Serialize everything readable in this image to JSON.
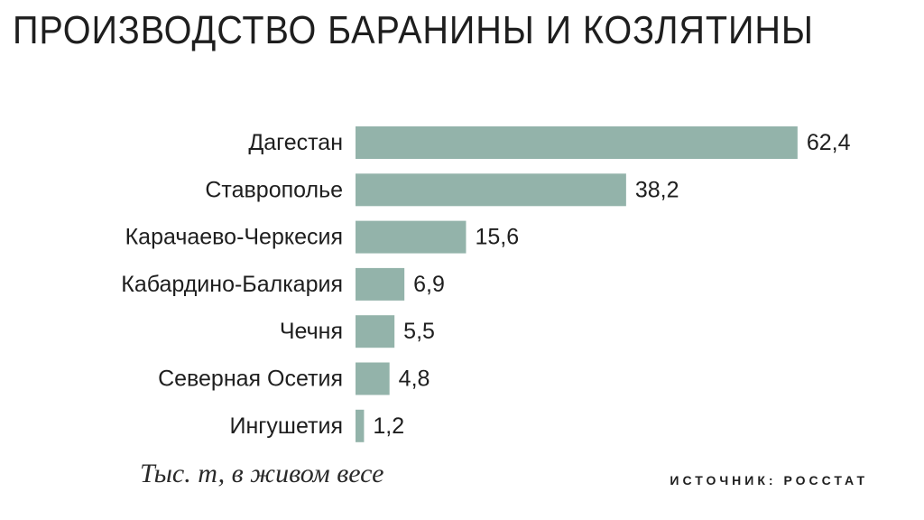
{
  "chart_data": {
    "type": "bar",
    "orientation": "horizontal",
    "title": "ПРОИЗВОДСТВО БАРАНИНЫ И КОЗЛЯТИНЫ",
    "categories": [
      "Дагестан",
      "Ставрополье",
      "Карачаево-Черкесия",
      "Кабардино-Балкария",
      "Чечня",
      "Северная Осетия",
      "Ингушетия"
    ],
    "values": [
      62.4,
      38.2,
      15.6,
      6.9,
      5.5,
      4.8,
      1.2
    ],
    "value_labels": [
      "62,4",
      "38,2",
      "15,6",
      "6,9",
      "5,5",
      "4,8",
      "1,2"
    ],
    "bar_color": "#93b3aa",
    "grid": false,
    "legend": "none"
  },
  "unit_note": "Тыс. т, в живом весе",
  "source": "ИСТОЧНИК: РОССТАТ"
}
